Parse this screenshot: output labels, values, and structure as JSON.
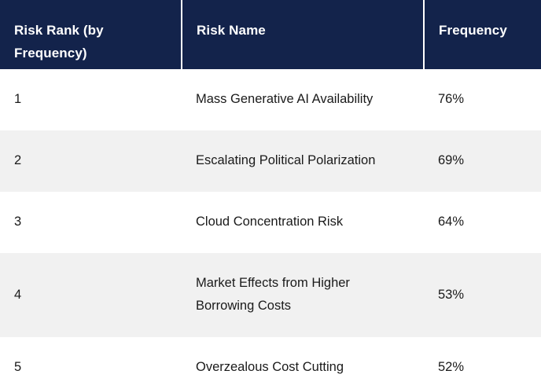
{
  "table": {
    "columns": [
      {
        "label": "Risk Rank (by Frequency)"
      },
      {
        "label": "Risk Name"
      },
      {
        "label": "Frequency"
      }
    ],
    "rows": [
      {
        "rank": "1",
        "name": "Mass Generative AI Availability",
        "frequency": "76%"
      },
      {
        "rank": "2",
        "name": "Escalating Political Polarization",
        "frequency": "69%"
      },
      {
        "rank": "3",
        "name": "Cloud Concentration Risk",
        "frequency": "64%"
      },
      {
        "rank": "4",
        "name": "Market Effects from Higher Borrowing Costs",
        "frequency": "53%"
      },
      {
        "rank": "5",
        "name": "Overzealous Cost Cutting",
        "frequency": "52%"
      }
    ],
    "colors": {
      "header_bg": "#13234B",
      "header_text": "#FFFFFF",
      "row_bg": "#FFFFFF",
      "row_alt_bg": "#F1F1F1",
      "body_text": "#1A1A1A"
    }
  }
}
